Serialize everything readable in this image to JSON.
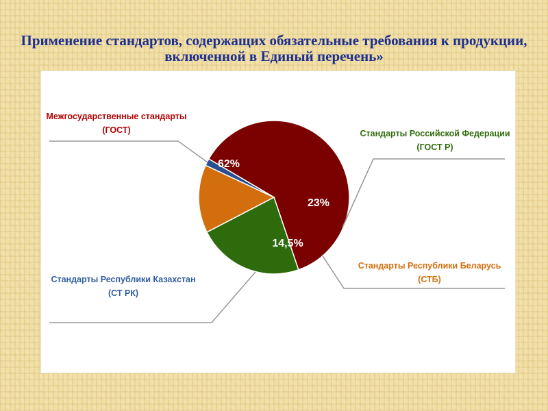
{
  "title": "Применение стандартов, содержащих обязательные требования к продукции, включенной в Единый перечень»",
  "chart_data": {
    "type": "pie",
    "title": "",
    "slices": [
      {
        "name_line1": "Межгосударственные стандарты",
        "name_line2": "(ГОСТ)",
        "value": 62,
        "label": "62%",
        "color": "#7b0000",
        "label_color": "#b30000"
      },
      {
        "name_line1": "Стандарты Российской Федерации",
        "name_line2": "(ГОСТ Р)",
        "value": 23,
        "label": "23%",
        "color": "#2e6b0c",
        "label_color": "#2e6b0c"
      },
      {
        "name_line1": "Стандарты Республики Беларусь",
        "name_line2": "(СТБ)",
        "value": 14.5,
        "label": "14,5%",
        "color": "#d36e0f",
        "label_color": "#d36e0f"
      },
      {
        "name_line1": "Стандарты Республики Казахстан",
        "name_line2": "(СТ РК)",
        "value": 1.5,
        "label": "",
        "color": "#2a4f8f",
        "label_color": "#2f5d9e"
      }
    ]
  }
}
